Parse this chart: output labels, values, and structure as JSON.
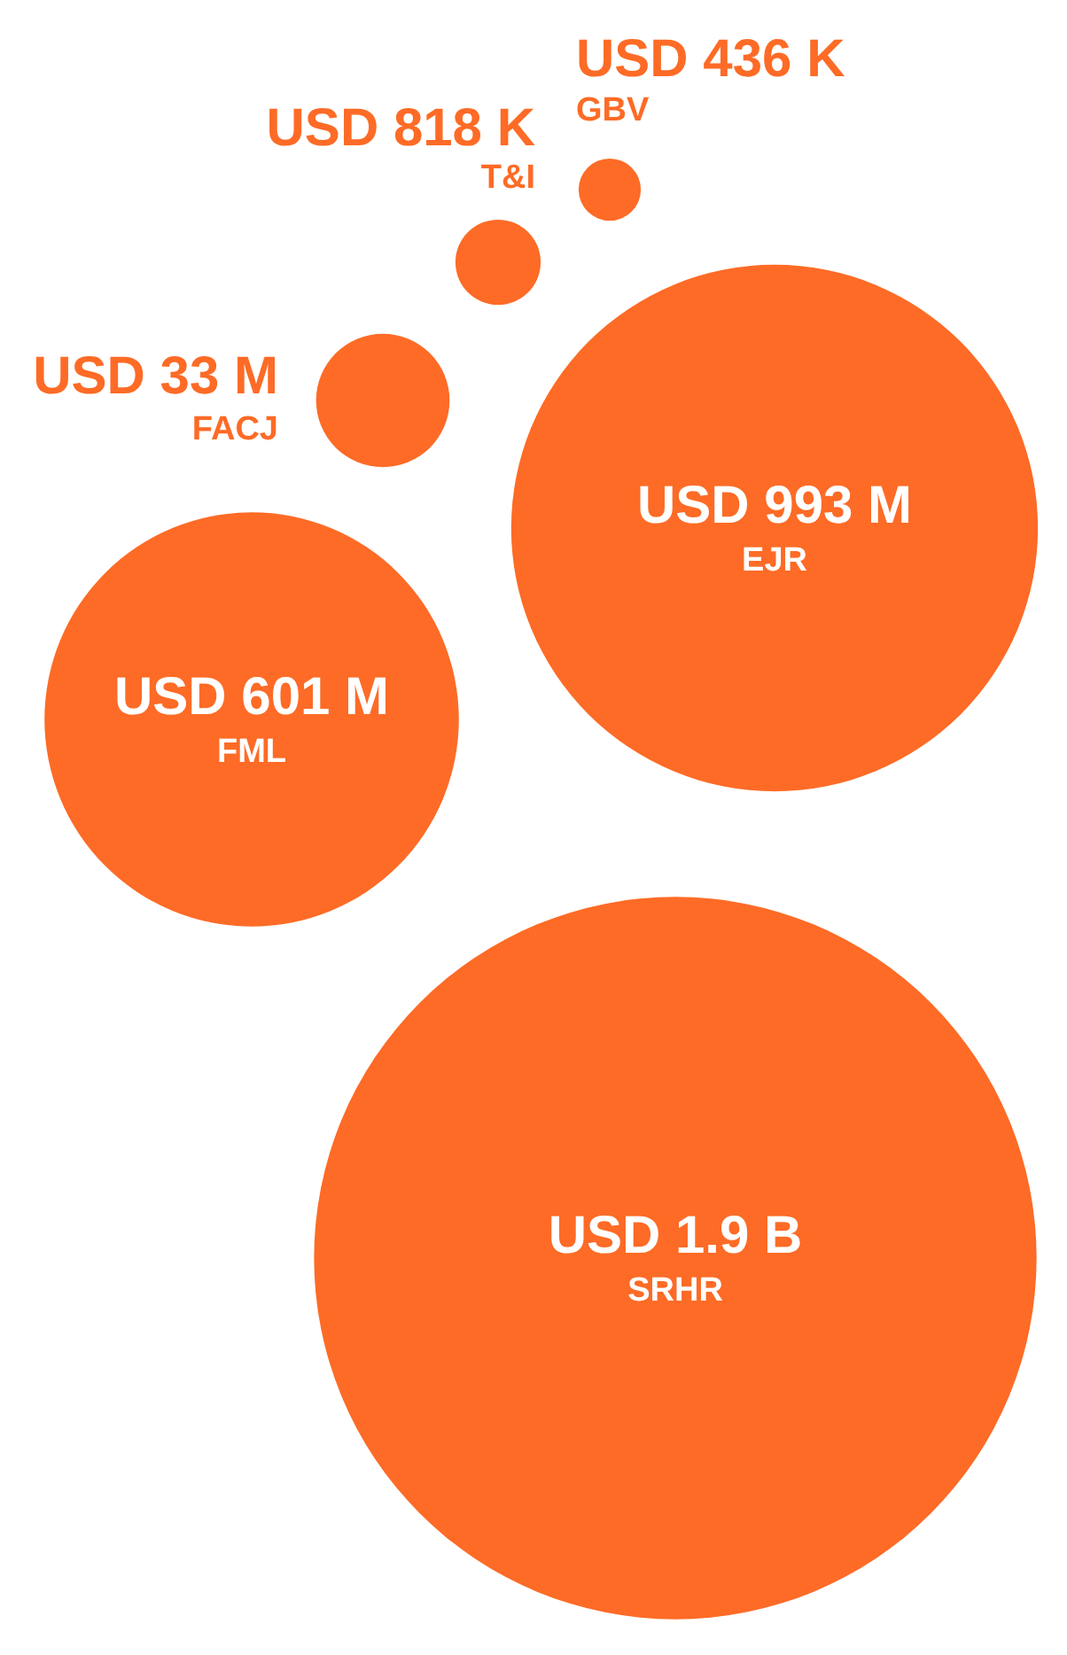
{
  "chart_data": {
    "type": "other",
    "categories": [
      "GBV",
      "T&I",
      "FACJ",
      "EJR",
      "FML",
      "SRHR"
    ],
    "values": [
      436000,
      818000,
      33000000,
      993000000,
      601000000,
      1900000000
    ],
    "value_labels": [
      "USD 436 K",
      "USD 818 K",
      "USD 33 M",
      "USD 993 M",
      "USD 601 M",
      "USD 1.9 B"
    ],
    "colors": [
      "#fd6b26",
      "#fd6b26",
      "#fd6b26",
      "#fd6b26",
      "#fd6b26",
      "#fd6b26"
    ]
  }
}
